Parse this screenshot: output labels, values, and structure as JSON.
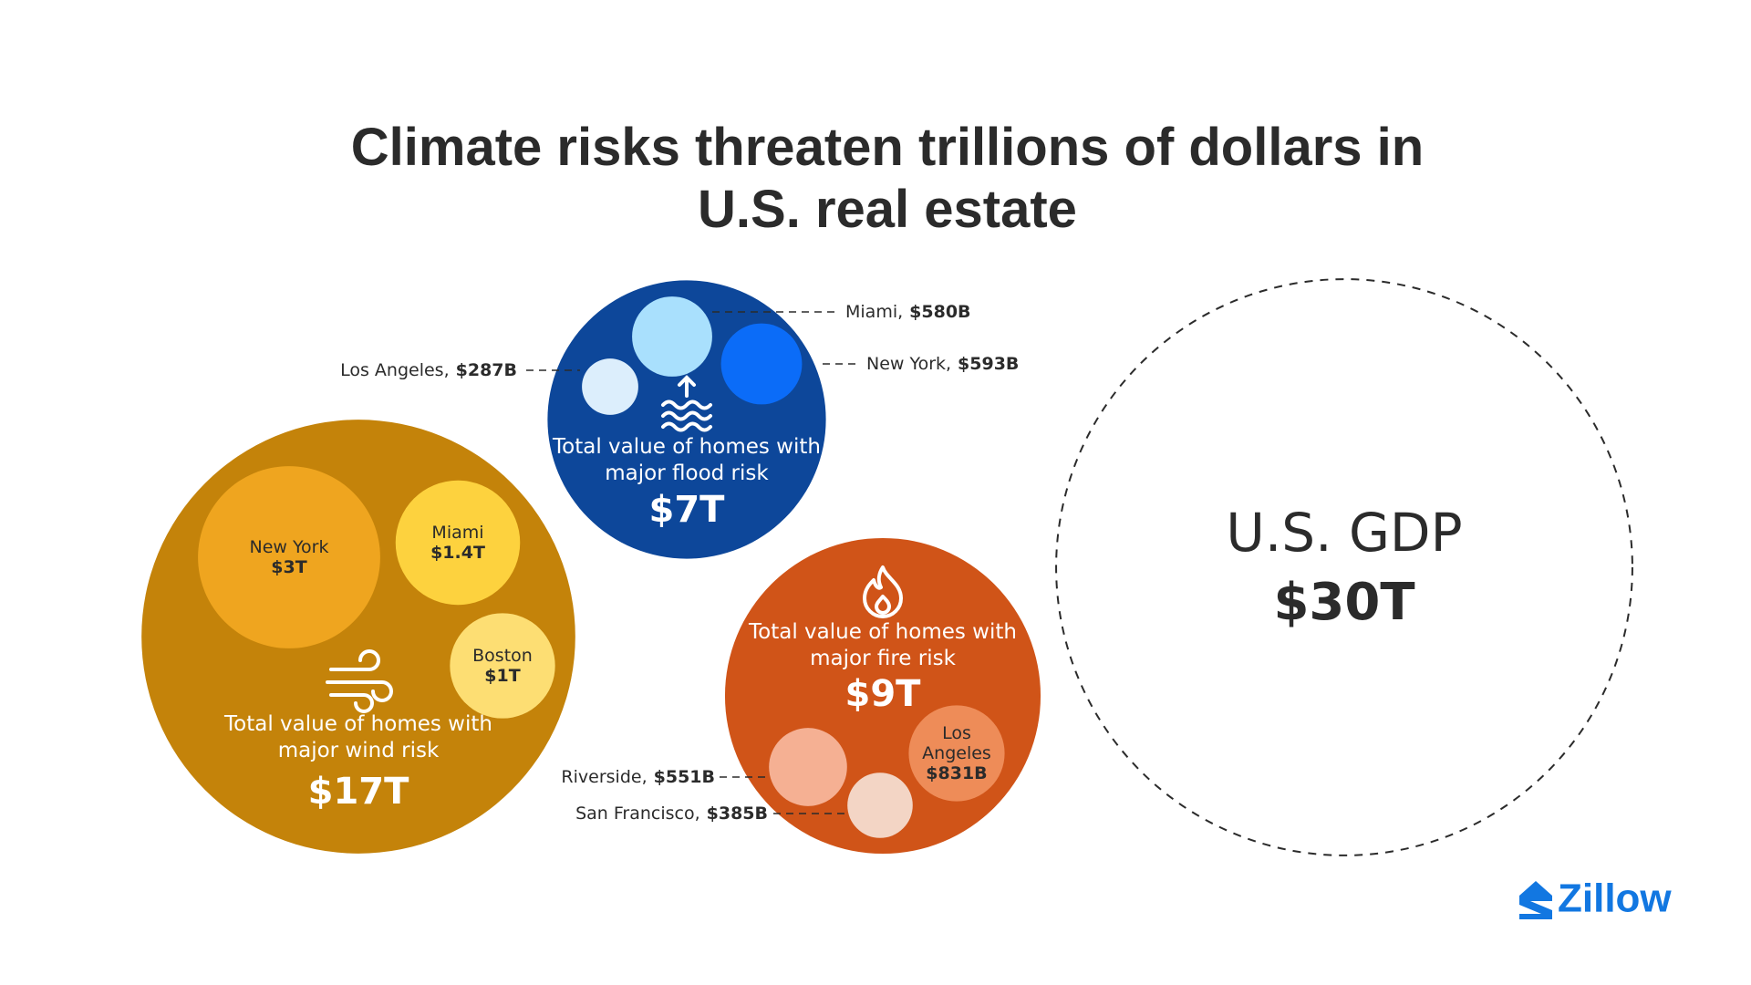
{
  "chart_data": {
    "type": "bubble",
    "title": "Climate risks threaten trillions of dollars in U.S. real estate",
    "groups": [
      {
        "label": "Total value of homes with major wind risk",
        "value": 17000,
        "value_label": "$17T",
        "color": "#C4830A",
        "children": [
          {
            "name": "New York",
            "value": 3000,
            "value_label": "$3T",
            "color": "#EFA51F"
          },
          {
            "name": "Miami",
            "value": 1400,
            "value_label": "$1.4T",
            "color": "#FDD23E"
          },
          {
            "name": "Boston",
            "value": 1000,
            "value_label": "$1T",
            "color": "#FDDE73"
          }
        ]
      },
      {
        "label": "Total value of homes with major flood risk",
        "value": 7000,
        "value_label": "$7T",
        "color": "#0D479A",
        "children": [
          {
            "name": "Miami,",
            "value": 580,
            "value_label": "$580B",
            "color": "#A9E0FD"
          },
          {
            "name": "New York,",
            "value": 593,
            "value_label": "$593B",
            "color": "#0B6CF8"
          },
          {
            "name": "Los Angeles,",
            "value": 287,
            "value_label": "$287B",
            "color": "#DCEEFC"
          }
        ]
      },
      {
        "label": "Total value of homes with major fire risk",
        "value": 9000,
        "value_label": "$9T",
        "color": "#D05418",
        "children": [
          {
            "name": "Los Angeles",
            "value": 831,
            "value_label": "$831B",
            "color": "#EE8C58"
          },
          {
            "name": "Riverside,",
            "value": 551,
            "value_label": "$551B",
            "color": "#F5B093"
          },
          {
            "name": "San Francisco,",
            "value": 385,
            "value_label": "$385B",
            "color": "#F3D5C5"
          }
        ]
      }
    ],
    "reference": {
      "name": "U.S. GDP",
      "value": 30000,
      "value_label": "$30T"
    }
  },
  "brand": "Zillow"
}
